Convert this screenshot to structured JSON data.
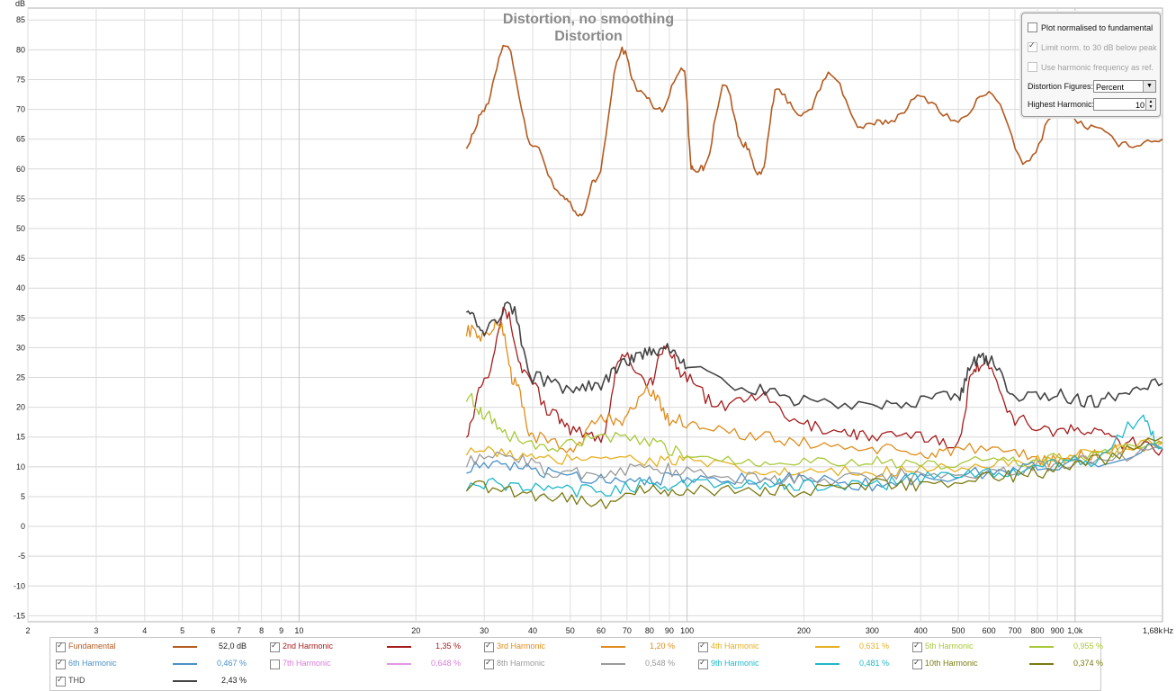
{
  "chart_data": {
    "type": "line",
    "title": "Distortion, no smoothing",
    "subtitle": "Distortion",
    "ylabel": "dB",
    "xunit": "Hz",
    "x_scale": "log",
    "xlim": [
      2,
      1680
    ],
    "ylim": [
      -16,
      87
    ],
    "grid": true,
    "y_ticks": [
      85,
      80,
      75,
      70,
      65,
      60,
      55,
      50,
      45,
      40,
      35,
      30,
      25,
      20,
      15,
      10,
      5,
      0,
      -5,
      -10,
      -15
    ],
    "x_ticks": [
      {
        "v": 2,
        "label": "2"
      },
      {
        "v": 3,
        "label": "3"
      },
      {
        "v": 4,
        "label": "4"
      },
      {
        "v": 5,
        "label": "5"
      },
      {
        "v": 6,
        "label": "6"
      },
      {
        "v": 7,
        "label": "7"
      },
      {
        "v": 8,
        "label": "8"
      },
      {
        "v": 9,
        "label": "9"
      },
      {
        "v": 10,
        "label": "10"
      },
      {
        "v": 20,
        "label": "20"
      },
      {
        "v": 30,
        "label": "30"
      },
      {
        "v": 40,
        "label": "40"
      },
      {
        "v": 50,
        "label": "50"
      },
      {
        "v": 60,
        "label": "60"
      },
      {
        "v": 70,
        "label": "70"
      },
      {
        "v": 80,
        "label": "80"
      },
      {
        "v": 90,
        "label": "90"
      },
      {
        "v": 100,
        "label": "100"
      },
      {
        "v": 200,
        "label": "200"
      },
      {
        "v": 300,
        "label": "300"
      },
      {
        "v": 400,
        "label": "400"
      },
      {
        "v": 500,
        "label": "500"
      },
      {
        "v": 600,
        "label": "600"
      },
      {
        "v": 700,
        "label": "700"
      },
      {
        "v": 800,
        "label": "800"
      },
      {
        "v": 900,
        "label": "900"
      },
      {
        "v": 1000,
        "label": "1,0k"
      },
      {
        "v": 1680,
        "label": "1,68k"
      }
    ],
    "series": [
      {
        "name": "Fundamental",
        "color": "#b35a1f",
        "x": [
          27,
          30,
          34,
          40,
          48,
          53,
          58,
          68,
          75,
          85,
          98,
          103,
          110,
          125,
          140,
          155,
          170,
          200,
          235,
          280,
          330,
          400,
          500,
          600,
          750,
          900,
          1100,
          1350,
          1680
        ],
        "y": [
          64,
          70,
          81,
          64,
          55,
          52,
          58,
          80,
          73,
          70,
          77,
          60,
          60,
          74,
          64,
          59,
          73,
          69,
          76,
          67,
          68,
          72,
          68,
          73,
          61,
          70,
          67,
          64,
          65
        ]
      },
      {
        "name": "2nd Harmonic",
        "color": "#a51c1c",
        "x": [
          27,
          30,
          34,
          38,
          45,
          50,
          60,
          68,
          80,
          88,
          100,
          120,
          150,
          200,
          250,
          300,
          400,
          500,
          550,
          600,
          700,
          900,
          1100,
          1350,
          1680
        ],
        "y": [
          16,
          25,
          36,
          26,
          19,
          16,
          15,
          29,
          24,
          30,
          25,
          20,
          22,
          17,
          16,
          15,
          15,
          14,
          27,
          27,
          18,
          16,
          16,
          14,
          13
        ]
      },
      {
        "name": "3rd Harmonic",
        "color": "#e08c1a",
        "x": [
          27,
          30,
          33,
          36,
          40,
          50,
          60,
          68,
          80,
          90,
          110,
          150,
          200,
          300,
          400,
          500,
          700,
          900,
          1100,
          1350,
          1680
        ],
        "y": [
          33,
          32,
          34,
          24,
          15,
          13,
          18,
          18,
          23,
          18,
          17,
          15,
          14,
          13,
          12,
          13,
          12,
          11,
          12,
          13,
          14
        ]
      },
      {
        "name": "4th Harmonic",
        "color": "#e6b020",
        "x": [
          27,
          35,
          45,
          60,
          80,
          100,
          150,
          200,
          300,
          400,
          600,
          800,
          1100,
          1680
        ],
        "y": [
          13,
          12,
          11,
          12,
          11,
          11,
          9,
          9,
          9,
          10,
          10,
          11,
          12,
          14
        ]
      },
      {
        "name": "5th Harmonic",
        "color": "#a8c93a",
        "x": [
          27,
          30,
          35,
          45,
          60,
          80,
          100,
          150,
          200,
          300,
          400,
          600,
          800,
          1100,
          1680
        ],
        "y": [
          22,
          19,
          15,
          13,
          15,
          14,
          12,
          11,
          11,
          11,
          10,
          11,
          11,
          12,
          14
        ]
      },
      {
        "name": "6th Harmonic",
        "color": "#4a90c8",
        "x": [
          27,
          35,
          45,
          60,
          80,
          100,
          150,
          200,
          300,
          400,
          600,
          800,
          1100,
          1680
        ],
        "y": [
          10,
          10,
          9,
          8,
          8,
          8,
          8,
          8,
          7,
          8,
          9,
          10,
          11,
          13
        ]
      },
      {
        "name": "8th Harmonic",
        "color": "#9a9a9a",
        "x": [
          27,
          35,
          45,
          60,
          80,
          100,
          150,
          200,
          300,
          400,
          600,
          800,
          1100,
          1680
        ],
        "y": [
          11,
          12,
          9,
          9,
          10,
          9,
          8,
          8,
          8,
          9,
          9,
          10,
          11,
          13
        ]
      },
      {
        "name": "9th Harmonic",
        "color": "#1fb8c8",
        "x": [
          27,
          35,
          45,
          60,
          80,
          100,
          150,
          200,
          300,
          400,
          600,
          800,
          1100,
          1500,
          1680
        ],
        "y": [
          7,
          7,
          6,
          6,
          7,
          7,
          7,
          7,
          7,
          8,
          9,
          10,
          11,
          18,
          13
        ]
      },
      {
        "name": "10th Harmonic",
        "color": "#7a7a10",
        "x": [
          27,
          35,
          45,
          60,
          80,
          100,
          150,
          200,
          300,
          400,
          600,
          800,
          1100,
          1680
        ],
        "y": [
          7,
          6,
          5,
          4,
          6,
          6,
          6,
          6,
          7,
          7,
          8,
          9,
          11,
          15
        ]
      },
      {
        "name": "THD",
        "color": "#444444",
        "x": [
          27,
          30,
          35,
          40,
          50,
          60,
          70,
          80,
          90,
          100,
          150,
          200,
          300,
          400,
          500,
          550,
          600,
          700,
          900,
          1100,
          1350,
          1680
        ],
        "y": [
          37,
          33,
          37,
          25,
          23,
          24,
          28,
          29,
          30,
          27,
          23,
          21,
          20,
          21,
          22,
          28,
          28,
          22,
          22,
          21,
          22,
          24
        ]
      }
    ]
  },
  "control_panel": {
    "plot_normalised": "Plot normalised to fundamental",
    "limit_norm": "Limit norm. to 30 dB below peak",
    "use_harmonic": "Use harmonic frequency as ref.",
    "distortion_figures_label": "Distortion Figures:",
    "distortion_figures_value": "Percent",
    "highest_harmonic_label": "Highest Harmonic:",
    "highest_harmonic_value": "10"
  },
  "legend": {
    "items": [
      {
        "name": "Fundamental",
        "value": "52,0 dB",
        "color": "#b35a1f",
        "checked": true
      },
      {
        "name": "2nd Harmonic",
        "value": "1,35 %",
        "color": "#a51c1c",
        "checked": true
      },
      {
        "name": "3rd Harmonic",
        "value": "1,20 %",
        "color": "#e08c1a",
        "checked": true
      },
      {
        "name": "4th Harmonic",
        "value": "0,631 %",
        "color": "#e6b020",
        "checked": true
      },
      {
        "name": "5th Harmonic",
        "value": "0,955 %",
        "color": "#a8c93a",
        "checked": true
      },
      {
        "name": "6th Harmonic",
        "value": "0,467 %",
        "color": "#4a90c8",
        "checked": true
      },
      {
        "name": "7th Harmonic",
        "value": "0,648 %",
        "color": "#d050d0",
        "checked": false
      },
      {
        "name": "8th Harmonic",
        "value": "0,548 %",
        "color": "#9a9a9a",
        "checked": true
      },
      {
        "name": "9th Harmonic",
        "value": "0,481 %",
        "color": "#1fb8c8",
        "checked": true
      },
      {
        "name": "10th Harmonic",
        "value": "0,374 %",
        "color": "#7a7a10",
        "checked": true
      },
      {
        "name": "THD",
        "value": "2,43 %",
        "color": "#444444",
        "checked": true
      }
    ]
  }
}
